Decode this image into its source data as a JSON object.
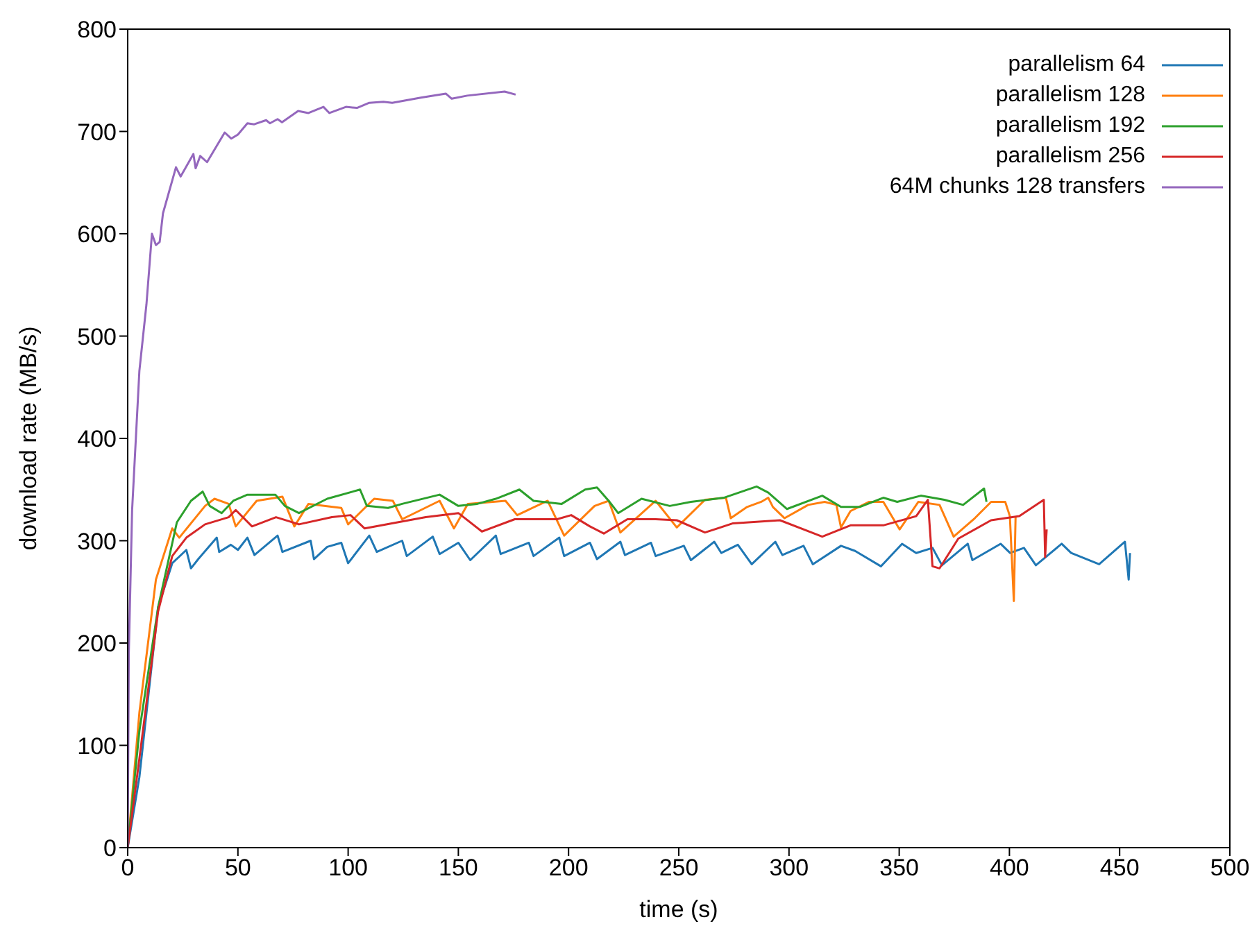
{
  "chart_data": {
    "type": "line",
    "xlabel": "time (s)",
    "ylabel": "download rate (MB/s)",
    "xlim": [
      0,
      500
    ],
    "xticks": [
      0,
      50,
      100,
      150,
      200,
      250,
      300,
      350,
      400,
      450,
      500
    ],
    "ylim": [
      0,
      800
    ],
    "yticks": [
      0,
      100,
      200,
      300,
      400,
      500,
      600,
      700,
      800
    ],
    "legend": "top right",
    "marker": "none",
    "line_style": "solid",
    "series": [
      {
        "name": "parallelism 64",
        "color": "#1f77b4",
        "x": [
          0,
          5.3,
          13.8,
          20.2,
          26.6,
          28.7,
          32,
          40.4,
          41.5,
          46.8,
          50,
          54.3,
          57.5,
          68,
          70.2,
          83,
          84.5,
          90.5,
          96.9,
          100,
          109.6,
          113,
          124.5,
          126.6,
          138.4,
          141.5,
          150,
          155.4,
          167,
          169.2,
          182,
          184.1,
          195.8,
          198,
          209.7,
          212.9,
          223.5,
          225.6,
          237.4,
          239.5,
          252.3,
          255.5,
          266.1,
          269.3,
          276.8,
          283.1,
          293.8,
          297,
          306.6,
          310.8,
          323.6,
          330,
          341.7,
          351.3,
          357.7,
          365.1,
          369.4,
          381.1,
          383.2,
          396,
          400.3,
          406.6,
          412,
          423.7,
          428,
          440.7,
          452.4,
          454.1,
          454.7
        ],
        "values": [
          0,
          69,
          235,
          278,
          291,
          273,
          282,
          303,
          289,
          296,
          291,
          303,
          286,
          305,
          289,
          300,
          282,
          294,
          298,
          278,
          305,
          289,
          300,
          285,
          304,
          287,
          298,
          281,
          305,
          287,
          298,
          285,
          303,
          285,
          298,
          282,
          299,
          286,
          298,
          285,
          295,
          281,
          299,
          288,
          296,
          277,
          299,
          286,
          295,
          277,
          295,
          290,
          275,
          297,
          288,
          293,
          276,
          297,
          281,
          297,
          288,
          293,
          276,
          297,
          288,
          277,
          299,
          262,
          288
        ]
      },
      {
        "name": "parallelism 128",
        "color": "#ff7f0e",
        "x": [
          0,
          5.3,
          12.8,
          20.2,
          23.4,
          35.1,
          39.4,
          45.8,
          49,
          58.5,
          70.2,
          75.6,
          82,
          96.9,
          100,
          111.8,
          120.3,
          124.5,
          141.5,
          148,
          154.3,
          171.4,
          176.7,
          190.5,
          198,
          211.8,
          218.2,
          223.5,
          239.5,
          249.1,
          261.9,
          271.4,
          273.6,
          281,
          287.4,
          290.6,
          292.7,
          298,
          308.7,
          316.2,
          321.5,
          323.6,
          327.9,
          336.4,
          342.8,
          350.2,
          358.7,
          368.3,
          374.7,
          384.3,
          391.7,
          398.1,
          400.2,
          402,
          402.8
        ],
        "values": [
          0,
          132,
          262,
          312,
          303,
          334,
          341,
          336,
          314,
          339,
          343,
          314,
          336,
          332,
          316,
          341,
          339,
          321,
          339,
          312,
          336,
          339,
          325,
          339,
          305,
          334,
          339,
          308,
          339,
          313,
          340,
          342,
          322,
          333,
          338,
          342,
          333,
          322,
          335,
          338,
          335,
          313,
          329,
          338,
          338,
          311,
          338,
          335,
          304,
          322,
          338,
          338,
          324,
          241,
          324
        ]
      },
      {
        "name": "parallelism 192",
        "color": "#2ca02c",
        "x": [
          0,
          5.3,
          13.8,
          22.3,
          28.7,
          34,
          37.2,
          42.6,
          47.9,
          54.3,
          67,
          71.3,
          77.7,
          90.5,
          105.4,
          108.5,
          118.1,
          124.5,
          141.5,
          150,
          158.6,
          167,
          177.7,
          184.1,
          196.9,
          207.5,
          212.9,
          218.2,
          222.5,
          233.1,
          245.9,
          255.5,
          270.4,
          285.3,
          290.6,
          299.1,
          315.1,
          323.6,
          332.1,
          342.8,
          349.1,
          359.8,
          370.5,
          379,
          388.5,
          389.6
        ],
        "values": [
          0,
          114,
          235,
          318,
          339,
          348,
          334,
          327,
          339,
          345,
          345,
          334,
          327,
          341,
          350,
          334,
          332,
          336,
          345,
          334,
          336,
          341,
          350,
          339,
          336,
          350,
          352,
          339,
          327,
          341,
          334,
          338,
          342,
          353,
          347,
          331,
          344,
          333,
          333,
          342,
          338,
          344,
          340,
          335,
          351,
          338
        ]
      },
      {
        "name": "parallelism 256",
        "color": "#d62728",
        "x": [
          0,
          5.3,
          13.8,
          20.2,
          26.6,
          35.1,
          45.8,
          49,
          56.4,
          67.3,
          77.7,
          92.6,
          101.1,
          107.5,
          122.4,
          135.2,
          150,
          160.7,
          175.6,
          194.8,
          201.2,
          209.7,
          216,
          226.7,
          239.5,
          249.1,
          261.9,
          274.6,
          295.9,
          315.1,
          327.9,
          342.8,
          357.7,
          363,
          365.1,
          368.3,
          376.8,
          391.7,
          404.5,
          415.6,
          416.2,
          416.9
        ],
        "values": [
          0,
          87,
          231,
          285,
          303,
          316,
          323,
          330,
          314,
          323,
          316,
          323,
          325,
          312,
          318,
          323,
          327,
          309,
          321,
          321,
          325,
          314,
          307,
          321,
          321,
          320,
          308,
          317,
          320,
          304,
          315,
          315,
          324,
          340,
          275,
          273,
          302,
          320,
          324,
          340,
          284,
          311
        ]
      },
      {
        "name": "64M chunks 128 transfers",
        "color": "#9467bd",
        "x": [
          0,
          0.5,
          2,
          5.3,
          8.5,
          11,
          12.8,
          14.5,
          16,
          21.9,
          24,
          29.8,
          30.8,
          32.9,
          36,
          44,
          47,
          50,
          54.3,
          57.4,
          62.8,
          64.5,
          68,
          70,
          77.3,
          82,
          88.8,
          91.5,
          99,
          104,
          109.6,
          116,
          120,
          133,
          144.3,
          147,
          154,
          171,
          176
        ],
        "values": [
          0,
          190,
          330,
          466,
          531,
          600,
          589,
          592,
          620,
          665,
          656,
          678,
          664,
          676,
          670,
          699,
          693,
          697,
          708,
          707,
          711,
          708,
          712,
          709,
          720,
          718,
          724,
          718,
          724,
          723,
          728,
          729,
          728,
          733,
          737,
          732,
          735,
          739,
          736
        ]
      }
    ]
  }
}
